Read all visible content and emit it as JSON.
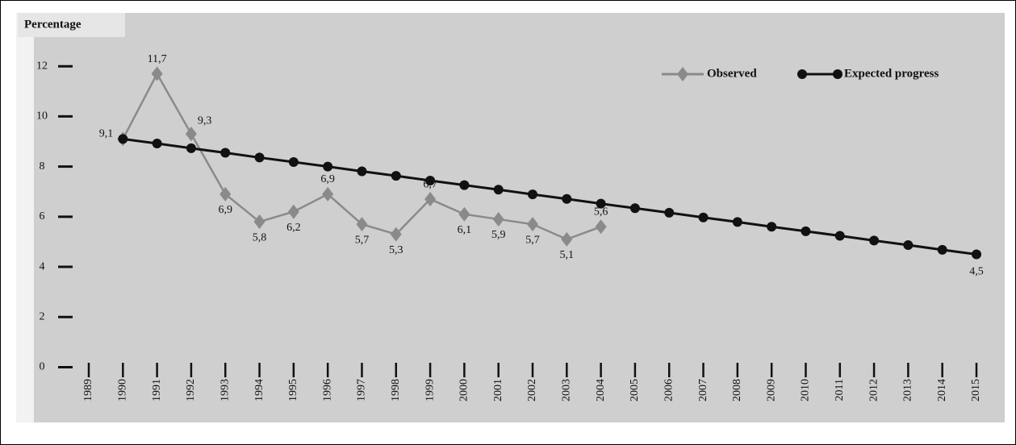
{
  "chart_data": {
    "type": "line",
    "y_label": "Percentage",
    "categories": [
      "1989",
      "1990",
      "1991",
      "1992",
      "1993",
      "1994",
      "1995",
      "1996",
      "1997",
      "1998",
      "1999",
      "2000",
      "2001",
      "2002",
      "2003",
      "2004",
      "2005",
      "2006",
      "2007",
      "2008",
      "2009",
      "2010",
      "2011",
      "2012",
      "2013",
      "2014",
      "2015"
    ],
    "series": [
      {
        "name": "Observed",
        "color": "#8a8a8a",
        "marker": "diamond",
        "values": [
          null,
          9.1,
          11.7,
          9.3,
          6.9,
          5.8,
          6.2,
          6.9,
          5.7,
          5.3,
          6.7,
          6.1,
          5.9,
          5.7,
          5.1,
          5.6,
          null,
          null,
          null,
          null,
          null,
          null,
          null,
          null,
          null,
          null,
          null
        ],
        "value_labels": [
          null,
          "9,1",
          "11,7",
          "9,3",
          "6,9",
          "5,8",
          "6,2",
          "6,9",
          "5,7",
          "5,3",
          "6,7",
          "6,1",
          "5,9",
          "5,7",
          "5,1",
          "5,6",
          null,
          null,
          null,
          null,
          null,
          null,
          null,
          null,
          null,
          null,
          null
        ]
      },
      {
        "name": "Expected progress",
        "color": "#111111",
        "marker": "circle",
        "values": [
          null,
          9.1,
          8.92,
          8.73,
          8.55,
          8.36,
          8.18,
          8.0,
          7.81,
          7.63,
          7.44,
          7.26,
          7.08,
          6.89,
          6.71,
          6.52,
          6.34,
          6.16,
          5.97,
          5.79,
          5.6,
          5.42,
          5.24,
          5.05,
          4.87,
          4.68,
          4.5
        ],
        "value_labels": [
          null,
          null,
          null,
          null,
          null,
          null,
          null,
          null,
          null,
          null,
          null,
          null,
          null,
          null,
          null,
          null,
          null,
          null,
          null,
          null,
          null,
          null,
          null,
          null,
          null,
          null,
          "4,5"
        ]
      }
    ],
    "ylim": [
      -0.5,
      14
    ],
    "yticks": [
      0,
      2,
      4,
      6,
      8,
      10,
      12
    ],
    "legend": "top-right"
  }
}
